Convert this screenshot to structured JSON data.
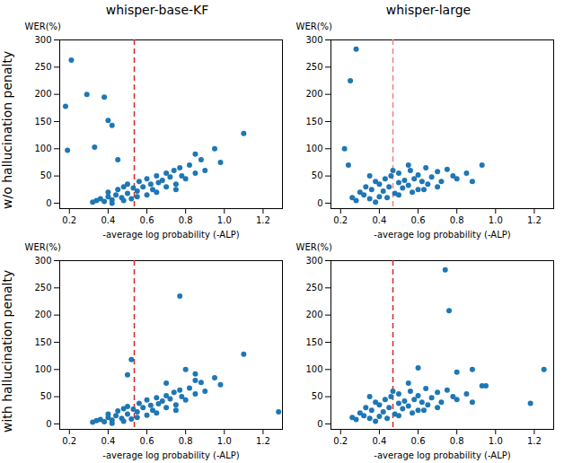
{
  "chart_data": [
    {
      "type": "scatter",
      "title": "whisper-base-KF",
      "annotations": [
        "w/o hallucination penalty"
      ],
      "xlabel": "-average log probability (-ALP)",
      "ylabel": "WER(%)",
      "xlim": [
        0.15,
        1.3
      ],
      "xticks": [
        0.2,
        0.4,
        0.6,
        0.8,
        {
          "value": 1,
          "label": "1.0"
        },
        1.2
      ],
      "ylim": [
        -10,
        300
      ],
      "yticks": [
        0,
        50,
        100,
        150,
        200,
        250,
        300
      ],
      "color": "#1f77b4",
      "reference_line": {
        "x": 0.535,
        "color": "#d62728",
        "line_style": "dashed"
      },
      "x": [
        0.32,
        0.34,
        0.36,
        0.38,
        0.4,
        0.4,
        0.42,
        0.44,
        0.45,
        0.47,
        0.48,
        0.5,
        0.5,
        0.52,
        0.53,
        0.55,
        0.56,
        0.58,
        0.6,
        0.6,
        0.62,
        0.63,
        0.65,
        0.66,
        0.68,
        0.7,
        0.7,
        0.72,
        0.74,
        0.75,
        0.77,
        0.78,
        0.8,
        0.82,
        0.85,
        0.88,
        0.9,
        0.95,
        0.98,
        0.42,
        0.48,
        0.55,
        0.65,
        0.75,
        0.85,
        0.18,
        0.19,
        0.21,
        0.29,
        0.33,
        0.38,
        0.4,
        0.42,
        0.45,
        1.1
      ],
      "values": [
        2,
        5,
        8,
        3,
        12,
        20,
        6,
        15,
        25,
        10,
        30,
        18,
        35,
        8,
        28,
        22,
        40,
        30,
        15,
        45,
        35,
        25,
        50,
        38,
        42,
        55,
        30,
        48,
        60,
        35,
        65,
        50,
        45,
        70,
        55,
        80,
        60,
        100,
        75,
        0,
        5,
        12,
        20,
        25,
        90,
        178,
        97,
        263,
        200,
        103,
        195,
        152,
        143,
        80,
        128
      ]
    },
    {
      "type": "scatter",
      "title": "whisper-large",
      "xlabel": "-average log probability (-ALP)",
      "ylabel": "WER(%)",
      "xlim": [
        0.15,
        1.3
      ],
      "xticks": [
        0.2,
        0.4,
        0.6,
        0.8,
        {
          "value": 1,
          "label": "1.0"
        },
        1.2
      ],
      "ylim": [
        -10,
        300
      ],
      "yticks": [
        0,
        50,
        100,
        150,
        200,
        250,
        300
      ],
      "color": "#1f77b4",
      "reference_line": {
        "x": 0.47,
        "color": "#f08080",
        "line_style": "dashed"
      },
      "x": [
        0.26,
        0.28,
        0.3,
        0.32,
        0.33,
        0.35,
        0.36,
        0.38,
        0.4,
        0.4,
        0.42,
        0.43,
        0.45,
        0.46,
        0.48,
        0.5,
        0.5,
        0.52,
        0.53,
        0.55,
        0.56,
        0.58,
        0.6,
        0.6,
        0.62,
        0.64,
        0.65,
        0.67,
        0.7,
        0.72,
        0.75,
        0.78,
        0.8,
        0.85,
        0.88,
        0.93,
        0.38,
        0.44,
        0.5,
        0.57,
        0.63,
        0.7,
        0.35,
        0.47,
        0.55,
        0.22,
        0.25,
        0.28,
        0.24
      ],
      "values": [
        10,
        5,
        20,
        15,
        30,
        8,
        25,
        40,
        12,
        35,
        22,
        45,
        30,
        50,
        18,
        38,
        55,
        28,
        42,
        33,
        60,
        45,
        25,
        52,
        40,
        65,
        35,
        48,
        58,
        40,
        62,
        50,
        45,
        55,
        40,
        70,
        2,
        10,
        15,
        20,
        25,
        30,
        50,
        60,
        70,
        100,
        225,
        283,
        70
      ]
    },
    {
      "type": "scatter",
      "annotations": [
        "with hallucination penalty"
      ],
      "xlabel": "-average log probability (-ALP)",
      "ylabel": "WER(%)",
      "xlim": [
        0.15,
        1.3
      ],
      "xticks": [
        0.2,
        0.4,
        0.6,
        0.8,
        {
          "value": 1,
          "label": "1.0"
        },
        1.2
      ],
      "ylim": [
        -10,
        300
      ],
      "yticks": [
        0,
        50,
        100,
        150,
        200,
        250,
        300
      ],
      "color": "#1f77b4",
      "reference_line": {
        "x": 0.535,
        "color": "#d62728",
        "line_style": "dashed"
      },
      "x": [
        0.32,
        0.34,
        0.36,
        0.38,
        0.4,
        0.4,
        0.42,
        0.44,
        0.45,
        0.47,
        0.48,
        0.5,
        0.5,
        0.52,
        0.53,
        0.55,
        0.56,
        0.58,
        0.6,
        0.6,
        0.62,
        0.63,
        0.65,
        0.66,
        0.68,
        0.7,
        0.7,
        0.72,
        0.74,
        0.75,
        0.77,
        0.78,
        0.8,
        0.82,
        0.85,
        0.88,
        0.9,
        0.95,
        0.98,
        0.42,
        0.48,
        0.55,
        0.65,
        0.75,
        0.85,
        0.5,
        0.52,
        0.77,
        0.8,
        0.85,
        1.1,
        1.28,
        0.7
      ],
      "values": [
        3,
        6,
        8,
        4,
        12,
        18,
        7,
        15,
        24,
        10,
        28,
        18,
        32,
        9,
        27,
        22,
        38,
        30,
        16,
        44,
        34,
        25,
        48,
        37,
        42,
        52,
        30,
        46,
        58,
        35,
        62,
        50,
        44,
        66,
        55,
        76,
        60,
        85,
        72,
        1,
        5,
        12,
        20,
        25,
        80,
        90,
        118,
        235,
        100,
        92,
        128,
        22,
        75
      ]
    },
    {
      "type": "scatter",
      "xlabel": "-average log probability (-ALP)",
      "ylabel": "WER(%)",
      "xlim": [
        0.15,
        1.3
      ],
      "xticks": [
        0.2,
        0.4,
        0.6,
        0.8,
        {
          "value": 1,
          "label": "1.0"
        },
        1.2
      ],
      "ylim": [
        -10,
        300
      ],
      "yticks": [
        0,
        50,
        100,
        150,
        200,
        250,
        300
      ],
      "color": "#1f77b4",
      "reference_line": {
        "x": 0.47,
        "color": "#d62728",
        "line_style": "dashed"
      },
      "x": [
        0.26,
        0.28,
        0.3,
        0.32,
        0.33,
        0.35,
        0.36,
        0.38,
        0.4,
        0.4,
        0.42,
        0.43,
        0.45,
        0.46,
        0.48,
        0.5,
        0.5,
        0.52,
        0.53,
        0.55,
        0.56,
        0.58,
        0.6,
        0.6,
        0.62,
        0.64,
        0.65,
        0.67,
        0.7,
        0.72,
        0.75,
        0.78,
        0.8,
        0.85,
        0.88,
        0.93,
        0.38,
        0.44,
        0.5,
        0.57,
        0.63,
        0.7,
        0.35,
        0.47,
        0.55,
        0.6,
        0.74,
        0.76,
        0.8,
        0.88,
        0.95,
        1.18,
        1.25
      ],
      "values": [
        12,
        8,
        20,
        15,
        30,
        10,
        25,
        40,
        14,
        35,
        22,
        45,
        30,
        50,
        18,
        38,
        55,
        28,
        42,
        33,
        60,
        45,
        25,
        52,
        40,
        65,
        35,
        48,
        58,
        40,
        62,
        50,
        45,
        55,
        40,
        70,
        5,
        10,
        15,
        20,
        25,
        30,
        50,
        60,
        75,
        103,
        283,
        208,
        95,
        100,
        70,
        38,
        100
      ]
    }
  ]
}
